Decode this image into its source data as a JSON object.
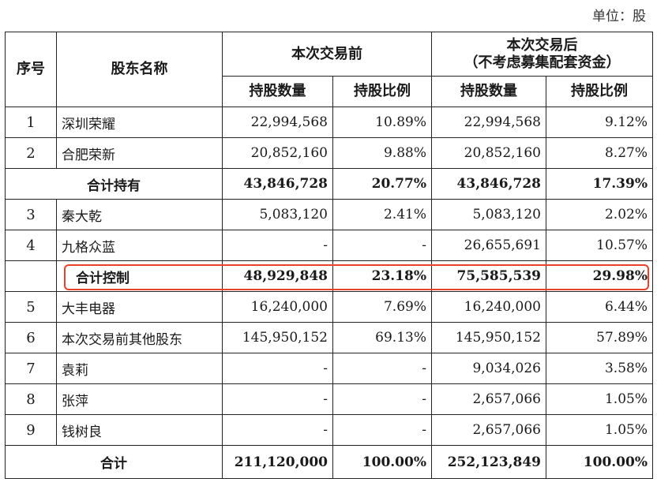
{
  "unit": "单位：股",
  "colors": {
    "highlight": "#e8412c"
  },
  "header": {
    "seq": "序号",
    "name": "股东名称",
    "before": "本次交易前",
    "after_line1": "本次交易后",
    "after_line2": "（不考虑募集配套资金）",
    "shares": "持股数量",
    "ratio": "持股比例"
  },
  "rows": [
    {
      "seq": "1",
      "name": "深圳荣耀",
      "before_shares": "22,994,568",
      "before_ratio": "10.89%",
      "after_shares": "22,994,568",
      "after_ratio": "9.12%"
    },
    {
      "seq": "2",
      "name": "合肥荣新",
      "before_shares": "20,852,160",
      "before_ratio": "9.88%",
      "after_shares": "20,852,160",
      "after_ratio": "8.27%"
    },
    {
      "label": "合计持有",
      "before_shares": "43,846,728",
      "before_ratio": "20.77%",
      "after_shares": "43,846,728",
      "after_ratio": "17.39%"
    },
    {
      "seq": "3",
      "name": "秦大乾",
      "before_shares": "5,083,120",
      "before_ratio": "2.41%",
      "after_shares": "5,083,120",
      "after_ratio": "2.02%"
    },
    {
      "seq": "4",
      "name": "九格众蓝",
      "before_shares": "-",
      "before_ratio": "-",
      "after_shares": "26,655,691",
      "after_ratio": "10.57%"
    },
    {
      "label": "合计控制",
      "before_shares": "48,929,848",
      "before_ratio": "23.18%",
      "after_shares": "75,585,539",
      "after_ratio": "29.98%"
    },
    {
      "seq": "5",
      "name": "大丰电器",
      "before_shares": "16,240,000",
      "before_ratio": "7.69%",
      "after_shares": "16,240,000",
      "after_ratio": "6.44%"
    },
    {
      "seq": "6",
      "name": "本次交易前其他股东",
      "before_shares": "145,950,152",
      "before_ratio": "69.13%",
      "after_shares": "145,950,152",
      "after_ratio": "57.89%"
    },
    {
      "seq": "7",
      "name": "袁莉",
      "before_shares": "-",
      "before_ratio": "-",
      "after_shares": "9,034,026",
      "after_ratio": "3.58%"
    },
    {
      "seq": "8",
      "name": "张萍",
      "before_shares": "-",
      "before_ratio": "-",
      "after_shares": "2,657,066",
      "after_ratio": "1.05%"
    },
    {
      "seq": "9",
      "name": "钱树良",
      "before_shares": "-",
      "before_ratio": "-",
      "after_shares": "2,657,066",
      "after_ratio": "1.05%"
    },
    {
      "label": "合计",
      "before_shares": "211,120,000",
      "before_ratio": "100.00%",
      "after_shares": "252,123,849",
      "after_ratio": "100.00%"
    }
  ]
}
